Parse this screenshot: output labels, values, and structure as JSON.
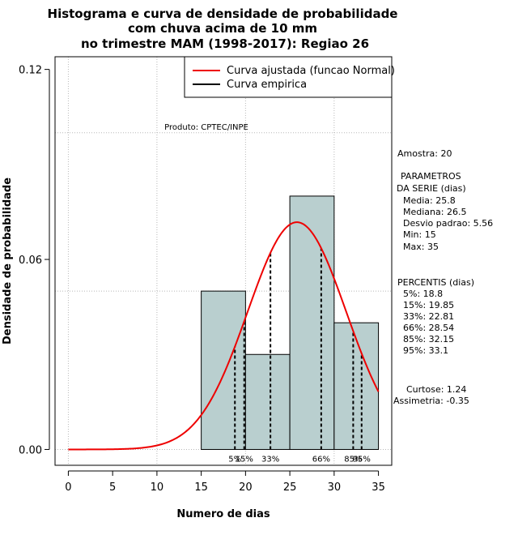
{
  "chart_data": {
    "type": "bar",
    "title_lines": [
      "Histograma e curva de densidade de probabilidade",
      "com chuva acima de 10 mm",
      "no trimestre MAM (1998-2017): Regiao 26"
    ],
    "xlabel": "Numero de dias",
    "ylabel": "Densidade de probabilidade",
    "xlim": [
      -1.5,
      36.5
    ],
    "ylim": [
      -0.005,
      0.124
    ],
    "xticks": [
      0,
      5,
      10,
      15,
      20,
      25,
      30,
      35
    ],
    "xtick_labels": [
      "0",
      "5",
      "10",
      "15",
      "20",
      "25",
      "30",
      "35"
    ],
    "yticks": [
      0.0,
      0.06,
      0.12
    ],
    "ytick_labels": [
      "0.00",
      "0.06",
      "0.12"
    ],
    "grid_x": [
      0,
      10,
      20,
      30
    ],
    "grid_y": [
      0.0,
      0.05,
      0.1
    ],
    "bins": [
      {
        "x0": 15,
        "x1": 20,
        "density": 0.05
      },
      {
        "x0": 20,
        "x1": 25,
        "density": 0.03
      },
      {
        "x0": 25,
        "x1": 30,
        "density": 0.08
      },
      {
        "x0": 30,
        "x1": 35,
        "density": 0.04
      }
    ],
    "bar_color": "#b9cfcf",
    "fitted_curve": {
      "name": "Curva ajustada (funcao Normal)",
      "mean": 25.8,
      "sd": 5.56,
      "x_range": [
        0,
        35
      ],
      "color": "#ee0000"
    },
    "empirical_curve": {
      "name": "Curva empirica",
      "color": "#000000"
    },
    "percentile_lines": [
      {
        "label": "5%",
        "x": 18.8
      },
      {
        "label": "15%",
        "x": 19.85
      },
      {
        "label": "33%",
        "x": 22.81
      },
      {
        "label": "66%",
        "x": 28.54
      },
      {
        "label": "85%",
        "x": 32.15
      },
      {
        "label": "95%",
        "x": 33.1
      }
    ],
    "legend_position": "top-right",
    "annotation": "Produto: CPTEC/INPE",
    "side_panel": [
      "Amostra: 20",
      "PARAMETROS",
      "DA SERIE (dias)",
      "Media: 25.8",
      "Mediana: 26.5",
      "Desvio padrao: 5.56",
      "Min: 15",
      "Max: 35",
      "PERCENTIS (dias)",
      "5%: 18.8",
      "15%: 19.85",
      "33%: 22.81",
      "66%: 28.54",
      "85%: 32.15",
      "95%: 33.1",
      "Curtose: 1.24",
      "Assimetria: -0.35"
    ]
  }
}
